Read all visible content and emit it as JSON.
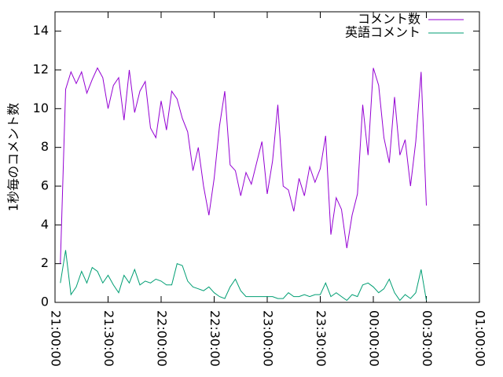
{
  "chart_data": {
    "type": "line",
    "ylabel": "1秒毎のコメント数",
    "x": [
      "21:03:00",
      "21:06:00",
      "21:09:00",
      "21:12:00",
      "21:15:00",
      "21:18:00",
      "21:21:00",
      "21:24:00",
      "21:27:00",
      "21:30:00",
      "21:33:00",
      "21:36:00",
      "21:39:00",
      "21:42:00",
      "21:45:00",
      "21:48:00",
      "21:51:00",
      "21:54:00",
      "21:57:00",
      "22:00:00",
      "22:03:00",
      "22:06:00",
      "22:09:00",
      "22:12:00",
      "22:15:00",
      "22:18:00",
      "22:21:00",
      "22:24:00",
      "22:27:00",
      "22:30:00",
      "22:33:00",
      "22:36:00",
      "22:39:00",
      "22:42:00",
      "22:45:00",
      "22:48:00",
      "22:51:00",
      "22:54:00",
      "22:57:00",
      "23:00:00",
      "23:03:00",
      "23:06:00",
      "23:09:00",
      "23:12:00",
      "23:15:00",
      "23:18:00",
      "23:21:00",
      "23:24:00",
      "23:27:00",
      "23:30:00",
      "23:33:00",
      "23:36:00",
      "23:39:00",
      "23:42:00",
      "23:45:00",
      "23:48:00",
      "23:51:00",
      "23:54:00",
      "23:57:00",
      "00:00:00",
      "00:03:00",
      "00:06:00",
      "00:09:00",
      "00:12:00",
      "00:15:00",
      "00:18:00",
      "00:21:00",
      "00:24:00",
      "00:27:00",
      "00:30:00"
    ],
    "series": [
      {
        "name": "コメント数",
        "color": "#9400d3",
        "values": [
          2.0,
          11.0,
          11.9,
          11.3,
          11.9,
          10.8,
          11.5,
          12.1,
          11.6,
          10.0,
          11.2,
          11.6,
          9.4,
          12.0,
          9.8,
          10.9,
          11.4,
          9.0,
          8.5,
          10.4,
          8.9,
          10.9,
          10.5,
          9.5,
          8.8,
          6.8,
          8.0,
          6.0,
          4.5,
          6.4,
          9.1,
          10.9,
          7.1,
          6.8,
          5.5,
          6.7,
          6.1,
          7.2,
          8.3,
          5.6,
          7.3,
          10.2,
          6.0,
          5.8,
          4.7,
          6.4,
          5.5,
          7.0,
          6.2,
          6.9,
          8.6,
          3.5,
          5.4,
          4.8,
          2.8,
          4.5,
          5.6,
          10.2,
          7.6,
          12.1,
          11.2,
          8.5,
          7.2,
          10.6,
          7.6,
          8.4,
          6.0,
          8.3,
          11.9,
          5.0
        ]
      },
      {
        "name": "英語コメント",
        "color": "#009e73",
        "values": [
          1.0,
          2.7,
          0.4,
          0.8,
          1.6,
          1.0,
          1.8,
          1.6,
          1.0,
          1.4,
          0.9,
          0.5,
          1.4,
          1.0,
          1.7,
          0.9,
          1.1,
          1.0,
          1.2,
          1.1,
          0.9,
          0.9,
          2.0,
          1.9,
          1.1,
          0.8,
          0.7,
          0.6,
          0.8,
          0.5,
          0.3,
          0.2,
          0.8,
          1.2,
          0.6,
          0.3,
          0.3,
          0.3,
          0.3,
          0.3,
          0.3,
          0.2,
          0.2,
          0.5,
          0.3,
          0.3,
          0.4,
          0.3,
          0.4,
          0.4,
          1.0,
          0.3,
          0.5,
          0.3,
          0.1,
          0.4,
          0.3,
          0.9,
          1.0,
          0.8,
          0.5,
          0.7,
          1.2,
          0.5,
          0.1,
          0.4,
          0.2,
          0.5,
          1.7,
          0.1
        ]
      }
    ],
    "xlim": [
      "21:00:00",
      "01:00:00"
    ],
    "xticks": [
      "21:00:00",
      "21:30:00",
      "22:00:00",
      "22:30:00",
      "23:00:00",
      "23:30:00",
      "00:00:00",
      "00:30:00",
      "01:00:00"
    ],
    "ylim": [
      0,
      15
    ],
    "yticks": [
      0,
      2,
      4,
      6,
      8,
      10,
      12,
      14
    ],
    "legend": "top-right"
  }
}
